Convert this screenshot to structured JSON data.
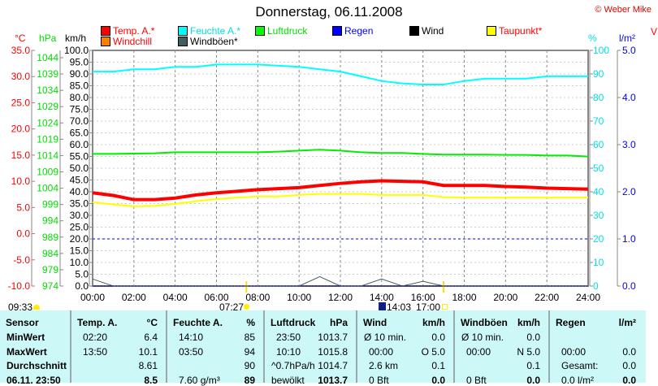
{
  "title": "Donnerstag, 06.11.2008",
  "copyright": "© Weber Mike",
  "legend": [
    {
      "label": "Temp. A.*",
      "color": "#ff0000",
      "text_color": "#ff0000"
    },
    {
      "label": "Feuchte A.*",
      "color": "#00ffff",
      "text_color": "#00e0e0"
    },
    {
      "label": "Luftdruck",
      "color": "#00ff00",
      "text_color": "#00dd00"
    },
    {
      "label": "Regen",
      "color": "#0000ff",
      "text_color": "#0000ff"
    },
    {
      "label": "Wind",
      "color": "#000000",
      "text_color": "#000000"
    },
    {
      "label": "Taupunkt*",
      "color": "#ffff00",
      "text_color": "#ff0000"
    },
    {
      "label": "Windchill",
      "color": "#ff8000",
      "text_color": "#ff0000"
    },
    {
      "label": "Windböen*",
      "color": "#406060",
      "text_color": "#000000"
    }
  ],
  "units": {
    "temp": "°C",
    "pressure": "hPa",
    "speed": "km/h",
    "humidity": "%",
    "rain": "l/m²",
    "partial": "V"
  },
  "chart_data": {
    "type": "line",
    "x_ticks": [
      "00:00",
      "02:00",
      "04:00",
      "06:00",
      "08:00",
      "10:00",
      "12:00",
      "14:00",
      "16:00",
      "18:00",
      "20:00",
      "22:00",
      "24:00"
    ],
    "x_hours": [
      0,
      1,
      2,
      3,
      4,
      5,
      6,
      7,
      8,
      9,
      10,
      11,
      12,
      13,
      14,
      15,
      16,
      17,
      18,
      19,
      20,
      21,
      22,
      23,
      24
    ],
    "axes": {
      "temp": {
        "range": [
          -10,
          35
        ],
        "ticks": [
          "35.0",
          "30.0",
          "25.0",
          "20.0",
          "15.0",
          "10.0",
          "5.0",
          "0.0",
          "-5.0",
          "-10.0"
        ]
      },
      "pressure": {
        "range": [
          974,
          1044
        ],
        "ticks": [
          "1044",
          "1039",
          "1034",
          "1029",
          "1024",
          "1019",
          "1014",
          "1009",
          "1004",
          "999",
          "994",
          "989",
          "984",
          "979",
          "974"
        ]
      },
      "speed": {
        "range": [
          0,
          100
        ],
        "ticks": [
          "100.0",
          "95.0",
          "90.0",
          "85.0",
          "80.0",
          "75.0",
          "70.0",
          "65.0",
          "60.0",
          "55.0",
          "50.0",
          "45.0",
          "40.0",
          "35.0",
          "30.0",
          "25.0",
          "20.0",
          "15.0",
          "10.0",
          "5.0",
          "0.0"
        ]
      },
      "humidity": {
        "range": [
          0,
          100
        ],
        "ticks": [
          "100",
          "90",
          "80",
          "70",
          "60",
          "50",
          "40",
          "30",
          "20",
          "10",
          "0"
        ]
      },
      "rain": {
        "range": [
          0,
          5
        ],
        "ticks": [
          "5.0",
          "4.0",
          "3.0",
          "2.0",
          "1.0",
          "0.0"
        ]
      }
    },
    "series": [
      {
        "name": "Feuchte A.",
        "axis": "humidity",
        "color": "#00ffff",
        "values": [
          91,
          91,
          92,
          92,
          93,
          93,
          94,
          94,
          94,
          93.5,
          93,
          92,
          91,
          89,
          87,
          86,
          85.5,
          85.5,
          87,
          88,
          88,
          88,
          89,
          89,
          89
        ]
      },
      {
        "name": "Luftdruck",
        "axis": "pressure",
        "color": "#00ee00",
        "values": [
          1014.5,
          1014.5,
          1014.6,
          1014.7,
          1015,
          1015,
          1015,
          1015,
          1015,
          1015.2,
          1015.5,
          1015.8,
          1015.5,
          1015,
          1014.8,
          1014.8,
          1014.5,
          1014.3,
          1014.3,
          1014.3,
          1014.2,
          1014.2,
          1014,
          1014,
          1013.7
        ]
      },
      {
        "name": "Taupunkt",
        "axis": "temp",
        "color": "#ffff00",
        "values": [
          6.0,
          5.6,
          5.2,
          5.3,
          5.7,
          6.2,
          6.6,
          6.9,
          7.1,
          7.1,
          7.4,
          7.6,
          7.6,
          7.6,
          7.4,
          7.4,
          7.4,
          7.0,
          6.9,
          6.9,
          6.9,
          6.9,
          6.9,
          6.9,
          6.9
        ]
      },
      {
        "name": "Temp. A.",
        "axis": "temp",
        "color": "#ff0000",
        "values": [
          7.8,
          7.3,
          6.5,
          6.5,
          6.8,
          7.4,
          7.8,
          8.1,
          8.4,
          8.6,
          8.8,
          9.2,
          9.6,
          9.9,
          10.1,
          10.0,
          9.9,
          9.2,
          9.2,
          9.2,
          9.0,
          8.9,
          8.7,
          8.6,
          8.5
        ]
      },
      {
        "name": "Wind",
        "axis": "speed",
        "color": "#000000",
        "values": [
          0,
          0,
          0,
          0,
          0,
          0,
          0,
          0,
          0,
          0,
          0,
          0,
          0,
          0,
          0,
          0,
          0,
          0,
          0,
          0,
          0,
          0,
          0,
          0,
          0
        ]
      },
      {
        "name": "Windböen",
        "axis": "speed",
        "color": "#406060",
        "values": [
          3,
          0,
          0,
          0,
          0,
          0,
          0,
          0,
          0,
          0,
          0,
          4,
          0,
          0,
          3,
          0,
          2,
          0,
          0,
          0,
          0,
          0,
          0,
          0,
          0
        ]
      },
      {
        "name": "Regen",
        "axis": "rain",
        "color": "#0000ff",
        "values": [
          0,
          0,
          0,
          0,
          0,
          0,
          0,
          0,
          0,
          0,
          0,
          0,
          0,
          0,
          0,
          0,
          0,
          0,
          0,
          0,
          0,
          0,
          0,
          0,
          0
        ]
      }
    ],
    "rain_reference_line": 1.0,
    "sun": {
      "rise": "07:27",
      "set": "17:00"
    },
    "moon": {
      "rise": "09:33",
      "set": "14:03"
    }
  },
  "table": {
    "headers": [
      [
        "Sensor",
        ""
      ],
      [
        "Temp. A.",
        "°C"
      ],
      [
        "Feuchte A.",
        "%"
      ],
      [
        "Luftdruck",
        "hPa"
      ],
      [
        "Wind",
        "km/h"
      ],
      [
        "Windböen",
        "km/h"
      ],
      [
        "Regen",
        "l/m²"
      ]
    ],
    "row_labels": [
      "MinWert",
      "MaxWert",
      "Durchschnitt",
      "06.11. 23:50"
    ],
    "cols": [
      [
        [
          "02:20",
          "6.4"
        ],
        [
          "13:50",
          "10.1"
        ],
        [
          "",
          "8.61"
        ],
        [
          "",
          "8.5"
        ]
      ],
      [
        [
          "14:10",
          "85"
        ],
        [
          "03:50",
          "94"
        ],
        [
          "",
          "90"
        ],
        [
          "7.60 g/m³",
          "89"
        ]
      ],
      [
        [
          "23:50",
          "1013.7"
        ],
        [
          "10:10",
          "1015.8"
        ],
        [
          "^0.7hPa/h",
          "1014.7"
        ],
        [
          "bewölkt",
          "1013.7"
        ]
      ],
      [
        [
          "Ø 10 min.",
          "0.0"
        ],
        [
          "00:00",
          "O 5.0"
        ],
        [
          "2.6 km",
          "0.1"
        ],
        [
          "0 Bft",
          "0.0"
        ]
      ],
      [
        [
          "Ø 10 min.",
          "0.0"
        ],
        [
          "00:00",
          "N 5.0"
        ],
        [
          "",
          "0.1"
        ],
        [
          "0 Bft",
          "0.0"
        ]
      ],
      [
        [
          "",
          ""
        ],
        [
          "00:00",
          "0.0"
        ],
        [
          "Gesamt:",
          "0.0"
        ],
        [
          "0.0 l/m²",
          "0.0"
        ]
      ]
    ]
  }
}
